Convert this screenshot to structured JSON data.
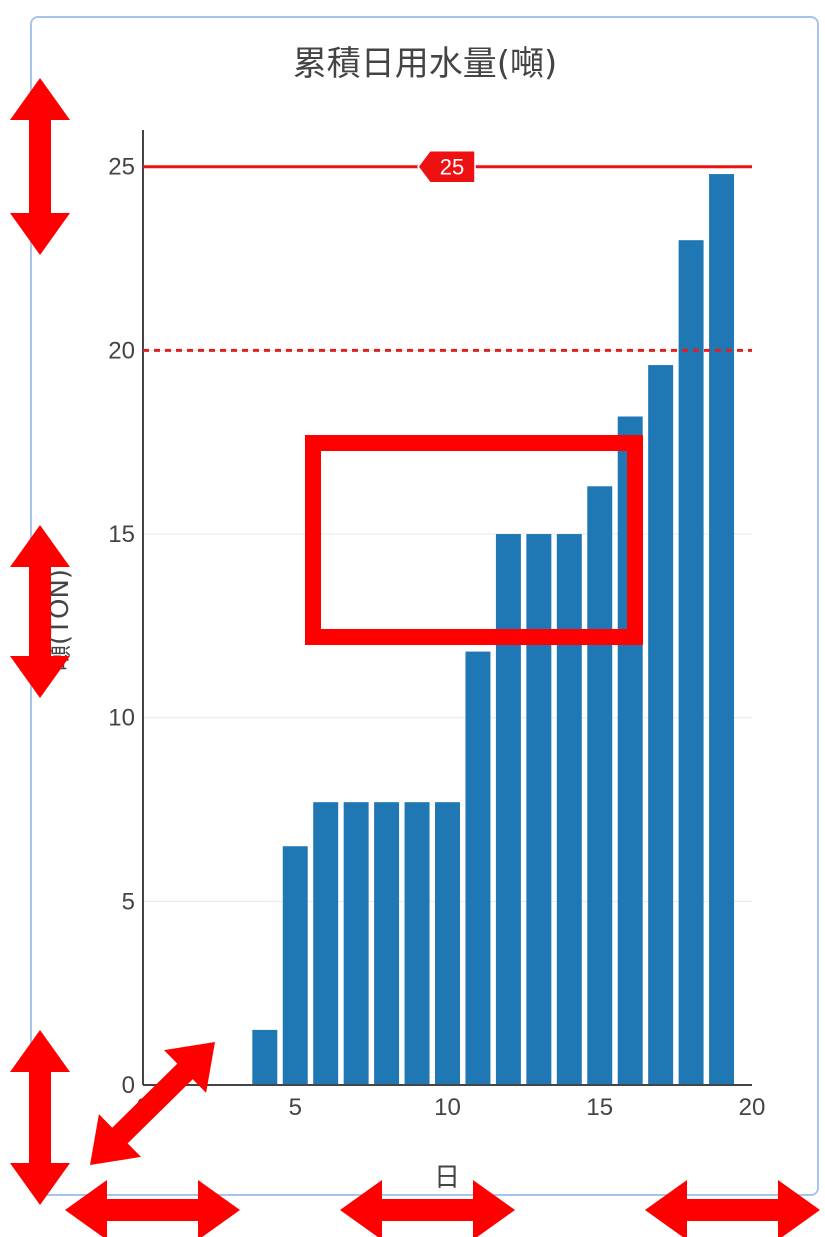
{
  "chart_data": {
    "type": "bar",
    "title": "累積日用水量(噸)",
    "xlabel": "日",
    "ylabel": "噸(TON)",
    "x": [
      4,
      5,
      6,
      7,
      8,
      9,
      10,
      11,
      12,
      13,
      14,
      15,
      16,
      17,
      18,
      19
    ],
    "values": [
      1.5,
      6.5,
      7.7,
      7.7,
      7.7,
      7.7,
      7.7,
      11.8,
      15.0,
      15.0,
      15.0,
      16.3,
      18.2,
      19.6,
      23.0,
      24.8
    ],
    "xlim": [
      0,
      20
    ],
    "ylim": [
      0,
      26
    ],
    "xticks": [
      "0",
      "5",
      "10",
      "15",
      "20"
    ],
    "yticks": [
      "0",
      "5",
      "10",
      "15",
      "20",
      "25"
    ],
    "grid": "horizontal",
    "bar_color": "#1f77b4",
    "reference_lines": [
      {
        "value": 25,
        "style": "solid",
        "color": "#ee1111",
        "label": "25"
      },
      {
        "value": 20,
        "style": "dotted",
        "color": "#dd2222"
      }
    ]
  },
  "annotations": {
    "highlight_color": "#ff0000",
    "arrow_color": "#ff0000"
  }
}
